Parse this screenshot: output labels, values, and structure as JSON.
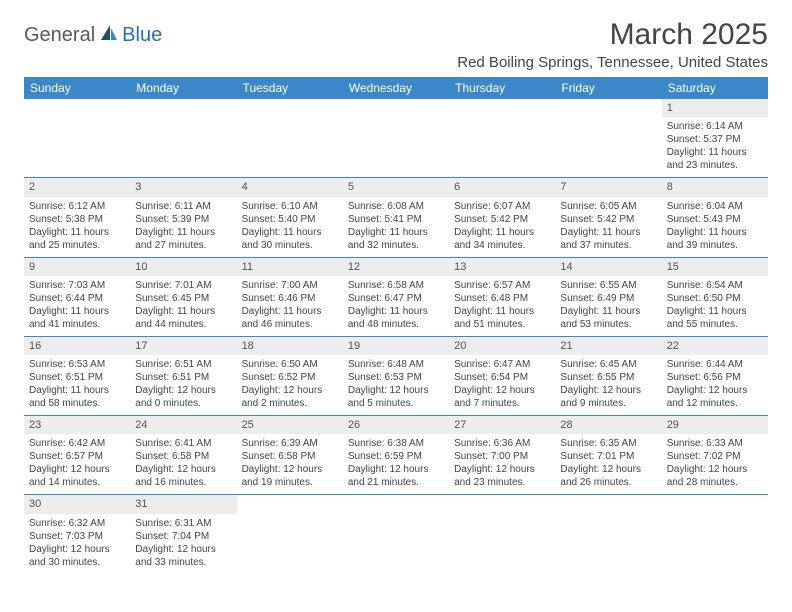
{
  "logo": {
    "part1": "General",
    "part2": "Blue"
  },
  "title": "March 2025",
  "location": "Red Boiling Springs, Tennessee, United States",
  "colors": {
    "header_bg": "#3b87c8",
    "header_text": "#ffffff",
    "border": "#3b87c8",
    "daynum_bg": "#ededed",
    "text": "#444444",
    "logo_gray": "#5a5a5a",
    "logo_blue": "#2a6fb5"
  },
  "dayHeaders": [
    "Sunday",
    "Monday",
    "Tuesday",
    "Wednesday",
    "Thursday",
    "Friday",
    "Saturday"
  ],
  "weeks": [
    [
      null,
      null,
      null,
      null,
      null,
      null,
      {
        "n": "1",
        "sunrise": "Sunrise: 6:14 AM",
        "sunset": "Sunset: 5:37 PM",
        "daylight": "Daylight: 11 hours and 23 minutes."
      }
    ],
    [
      {
        "n": "2",
        "sunrise": "Sunrise: 6:12 AM",
        "sunset": "Sunset: 5:38 PM",
        "daylight": "Daylight: 11 hours and 25 minutes."
      },
      {
        "n": "3",
        "sunrise": "Sunrise: 6:11 AM",
        "sunset": "Sunset: 5:39 PM",
        "daylight": "Daylight: 11 hours and 27 minutes."
      },
      {
        "n": "4",
        "sunrise": "Sunrise: 6:10 AM",
        "sunset": "Sunset: 5:40 PM",
        "daylight": "Daylight: 11 hours and 30 minutes."
      },
      {
        "n": "5",
        "sunrise": "Sunrise: 6:08 AM",
        "sunset": "Sunset: 5:41 PM",
        "daylight": "Daylight: 11 hours and 32 minutes."
      },
      {
        "n": "6",
        "sunrise": "Sunrise: 6:07 AM",
        "sunset": "Sunset: 5:42 PM",
        "daylight": "Daylight: 11 hours and 34 minutes."
      },
      {
        "n": "7",
        "sunrise": "Sunrise: 6:05 AM",
        "sunset": "Sunset: 5:42 PM",
        "daylight": "Daylight: 11 hours and 37 minutes."
      },
      {
        "n": "8",
        "sunrise": "Sunrise: 6:04 AM",
        "sunset": "Sunset: 5:43 PM",
        "daylight": "Daylight: 11 hours and 39 minutes."
      }
    ],
    [
      {
        "n": "9",
        "sunrise": "Sunrise: 7:03 AM",
        "sunset": "Sunset: 6:44 PM",
        "daylight": "Daylight: 11 hours and 41 minutes."
      },
      {
        "n": "10",
        "sunrise": "Sunrise: 7:01 AM",
        "sunset": "Sunset: 6:45 PM",
        "daylight": "Daylight: 11 hours and 44 minutes."
      },
      {
        "n": "11",
        "sunrise": "Sunrise: 7:00 AM",
        "sunset": "Sunset: 6:46 PM",
        "daylight": "Daylight: 11 hours and 46 minutes."
      },
      {
        "n": "12",
        "sunrise": "Sunrise: 6:58 AM",
        "sunset": "Sunset: 6:47 PM",
        "daylight": "Daylight: 11 hours and 48 minutes."
      },
      {
        "n": "13",
        "sunrise": "Sunrise: 6:57 AM",
        "sunset": "Sunset: 6:48 PM",
        "daylight": "Daylight: 11 hours and 51 minutes."
      },
      {
        "n": "14",
        "sunrise": "Sunrise: 6:55 AM",
        "sunset": "Sunset: 6:49 PM",
        "daylight": "Daylight: 11 hours and 53 minutes."
      },
      {
        "n": "15",
        "sunrise": "Sunrise: 6:54 AM",
        "sunset": "Sunset: 6:50 PM",
        "daylight": "Daylight: 11 hours and 55 minutes."
      }
    ],
    [
      {
        "n": "16",
        "sunrise": "Sunrise: 6:53 AM",
        "sunset": "Sunset: 6:51 PM",
        "daylight": "Daylight: 11 hours and 58 minutes."
      },
      {
        "n": "17",
        "sunrise": "Sunrise: 6:51 AM",
        "sunset": "Sunset: 6:51 PM",
        "daylight": "Daylight: 12 hours and 0 minutes."
      },
      {
        "n": "18",
        "sunrise": "Sunrise: 6:50 AM",
        "sunset": "Sunset: 6:52 PM",
        "daylight": "Daylight: 12 hours and 2 minutes."
      },
      {
        "n": "19",
        "sunrise": "Sunrise: 6:48 AM",
        "sunset": "Sunset: 6:53 PM",
        "daylight": "Daylight: 12 hours and 5 minutes."
      },
      {
        "n": "20",
        "sunrise": "Sunrise: 6:47 AM",
        "sunset": "Sunset: 6:54 PM",
        "daylight": "Daylight: 12 hours and 7 minutes."
      },
      {
        "n": "21",
        "sunrise": "Sunrise: 6:45 AM",
        "sunset": "Sunset: 6:55 PM",
        "daylight": "Daylight: 12 hours and 9 minutes."
      },
      {
        "n": "22",
        "sunrise": "Sunrise: 6:44 AM",
        "sunset": "Sunset: 6:56 PM",
        "daylight": "Daylight: 12 hours and 12 minutes."
      }
    ],
    [
      {
        "n": "23",
        "sunrise": "Sunrise: 6:42 AM",
        "sunset": "Sunset: 6:57 PM",
        "daylight": "Daylight: 12 hours and 14 minutes."
      },
      {
        "n": "24",
        "sunrise": "Sunrise: 6:41 AM",
        "sunset": "Sunset: 6:58 PM",
        "daylight": "Daylight: 12 hours and 16 minutes."
      },
      {
        "n": "25",
        "sunrise": "Sunrise: 6:39 AM",
        "sunset": "Sunset: 6:58 PM",
        "daylight": "Daylight: 12 hours and 19 minutes."
      },
      {
        "n": "26",
        "sunrise": "Sunrise: 6:38 AM",
        "sunset": "Sunset: 6:59 PM",
        "daylight": "Daylight: 12 hours and 21 minutes."
      },
      {
        "n": "27",
        "sunrise": "Sunrise: 6:36 AM",
        "sunset": "Sunset: 7:00 PM",
        "daylight": "Daylight: 12 hours and 23 minutes."
      },
      {
        "n": "28",
        "sunrise": "Sunrise: 6:35 AM",
        "sunset": "Sunset: 7:01 PM",
        "daylight": "Daylight: 12 hours and 26 minutes."
      },
      {
        "n": "29",
        "sunrise": "Sunrise: 6:33 AM",
        "sunset": "Sunset: 7:02 PM",
        "daylight": "Daylight: 12 hours and 28 minutes."
      }
    ],
    [
      {
        "n": "30",
        "sunrise": "Sunrise: 6:32 AM",
        "sunset": "Sunset: 7:03 PM",
        "daylight": "Daylight: 12 hours and 30 minutes."
      },
      {
        "n": "31",
        "sunrise": "Sunrise: 6:31 AM",
        "sunset": "Sunset: 7:04 PM",
        "daylight": "Daylight: 12 hours and 33 minutes."
      },
      null,
      null,
      null,
      null,
      null
    ]
  ]
}
